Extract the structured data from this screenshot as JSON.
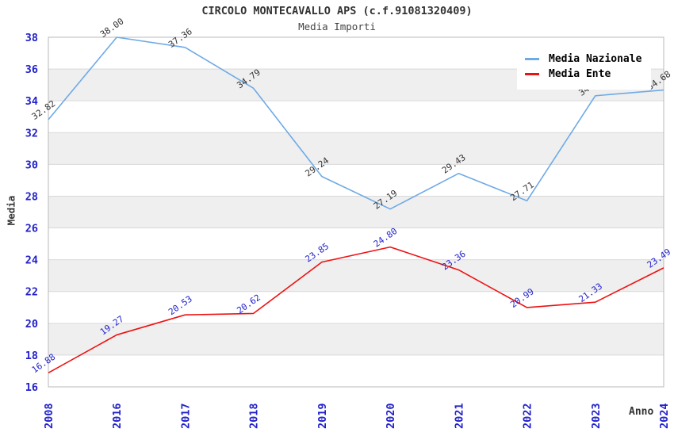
{
  "header": {
    "title": "CIRCOLO MONTECAVALLO APS (c.f.91081320409)",
    "subtitle": "Media Importi"
  },
  "chart_data": {
    "type": "line",
    "title": "CIRCOLO MONTECAVALLO APS (c.f.91081320409)",
    "subtitle": "Media Importi",
    "xlabel": "Anno",
    "ylabel": "Media",
    "categories": [
      "2008",
      "2016",
      "2017",
      "2018",
      "2019",
      "2020",
      "2021",
      "2022",
      "2023",
      "2024"
    ],
    "series": [
      {
        "name": "Media Nazionale",
        "color": "#6eaae6",
        "label_color": "#333333",
        "values": [
          32.82,
          38.0,
          37.36,
          34.79,
          29.24,
          27.19,
          29.43,
          27.71,
          34.32,
          34.68
        ]
      },
      {
        "name": "Media Ente",
        "color": "#ee1111",
        "label_color": "#2222cc",
        "values": [
          16.88,
          19.27,
          20.53,
          20.62,
          23.85,
          24.8,
          23.36,
          20.99,
          21.33,
          23.49
        ]
      }
    ],
    "ylim": [
      16,
      38
    ],
    "yticks": [
      16,
      18,
      20,
      22,
      24,
      26,
      28,
      30,
      32,
      34,
      36,
      38
    ],
    "grid": true,
    "legend_position": "top-right",
    "styles": {
      "tick_label_color": "#2222cc",
      "band_color": "#efefef",
      "gridline_color": "#d9d9d9",
      "border_color": "#b8b8b8"
    }
  }
}
